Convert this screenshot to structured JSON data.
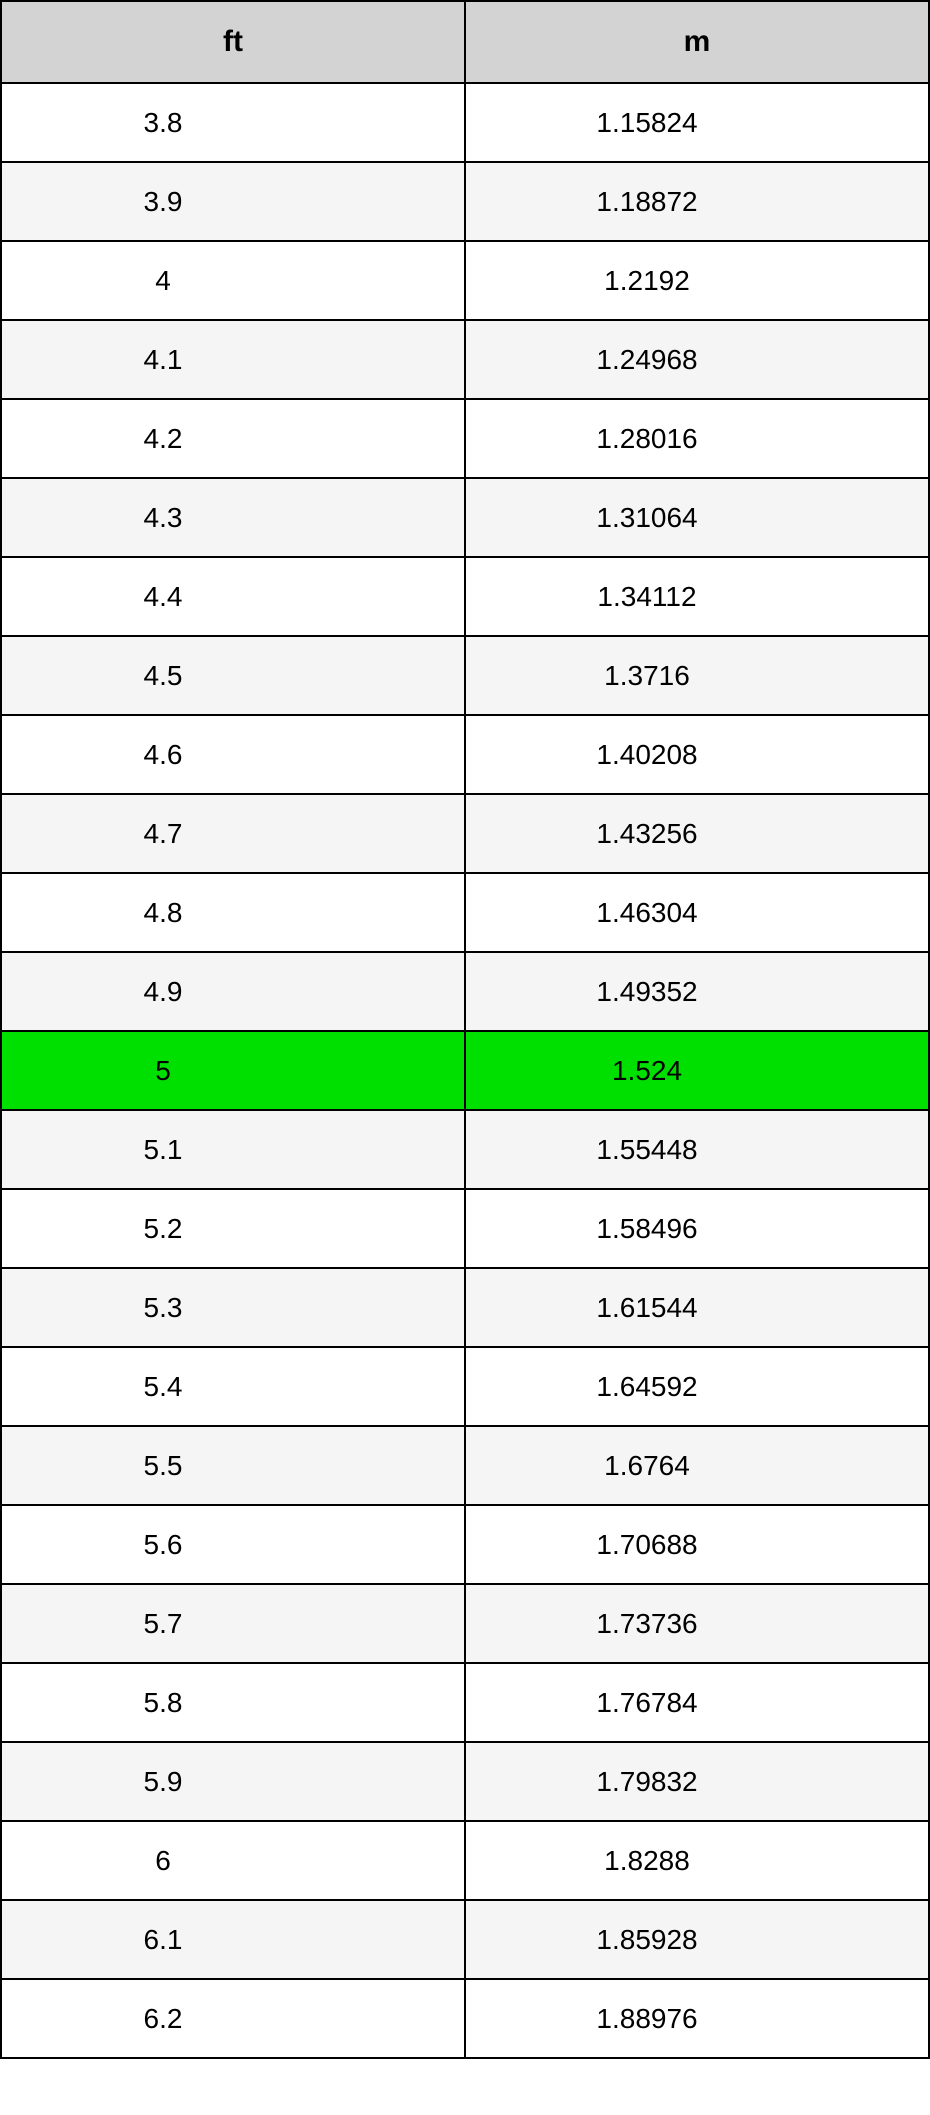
{
  "table": {
    "type": "table",
    "columns": [
      "ft",
      "m"
    ],
    "header_background": "#d3d3d3",
    "highlight_background": "#00e000",
    "row_even_background": "#ffffff",
    "row_odd_background": "#f5f5f5",
    "border_color": "#000000",
    "text_color": "#000000",
    "header_fontsize": 30,
    "cell_fontsize": 28,
    "highlight_index": 12,
    "rows": [
      {
        "ft": "3.8",
        "m": "1.15824"
      },
      {
        "ft": "3.9",
        "m": "1.18872"
      },
      {
        "ft": "4",
        "m": "1.2192"
      },
      {
        "ft": "4.1",
        "m": "1.24968"
      },
      {
        "ft": "4.2",
        "m": "1.28016"
      },
      {
        "ft": "4.3",
        "m": "1.31064"
      },
      {
        "ft": "4.4",
        "m": "1.34112"
      },
      {
        "ft": "4.5",
        "m": "1.3716"
      },
      {
        "ft": "4.6",
        "m": "1.40208"
      },
      {
        "ft": "4.7",
        "m": "1.43256"
      },
      {
        "ft": "4.8",
        "m": "1.46304"
      },
      {
        "ft": "4.9",
        "m": "1.49352"
      },
      {
        "ft": "5",
        "m": "1.524"
      },
      {
        "ft": "5.1",
        "m": "1.55448"
      },
      {
        "ft": "5.2",
        "m": "1.58496"
      },
      {
        "ft": "5.3",
        "m": "1.61544"
      },
      {
        "ft": "5.4",
        "m": "1.64592"
      },
      {
        "ft": "5.5",
        "m": "1.6764"
      },
      {
        "ft": "5.6",
        "m": "1.70688"
      },
      {
        "ft": "5.7",
        "m": "1.73736"
      },
      {
        "ft": "5.8",
        "m": "1.76784"
      },
      {
        "ft": "5.9",
        "m": "1.79832"
      },
      {
        "ft": "6",
        "m": "1.8288"
      },
      {
        "ft": "6.1",
        "m": "1.85928"
      },
      {
        "ft": "6.2",
        "m": "1.88976"
      }
    ]
  }
}
